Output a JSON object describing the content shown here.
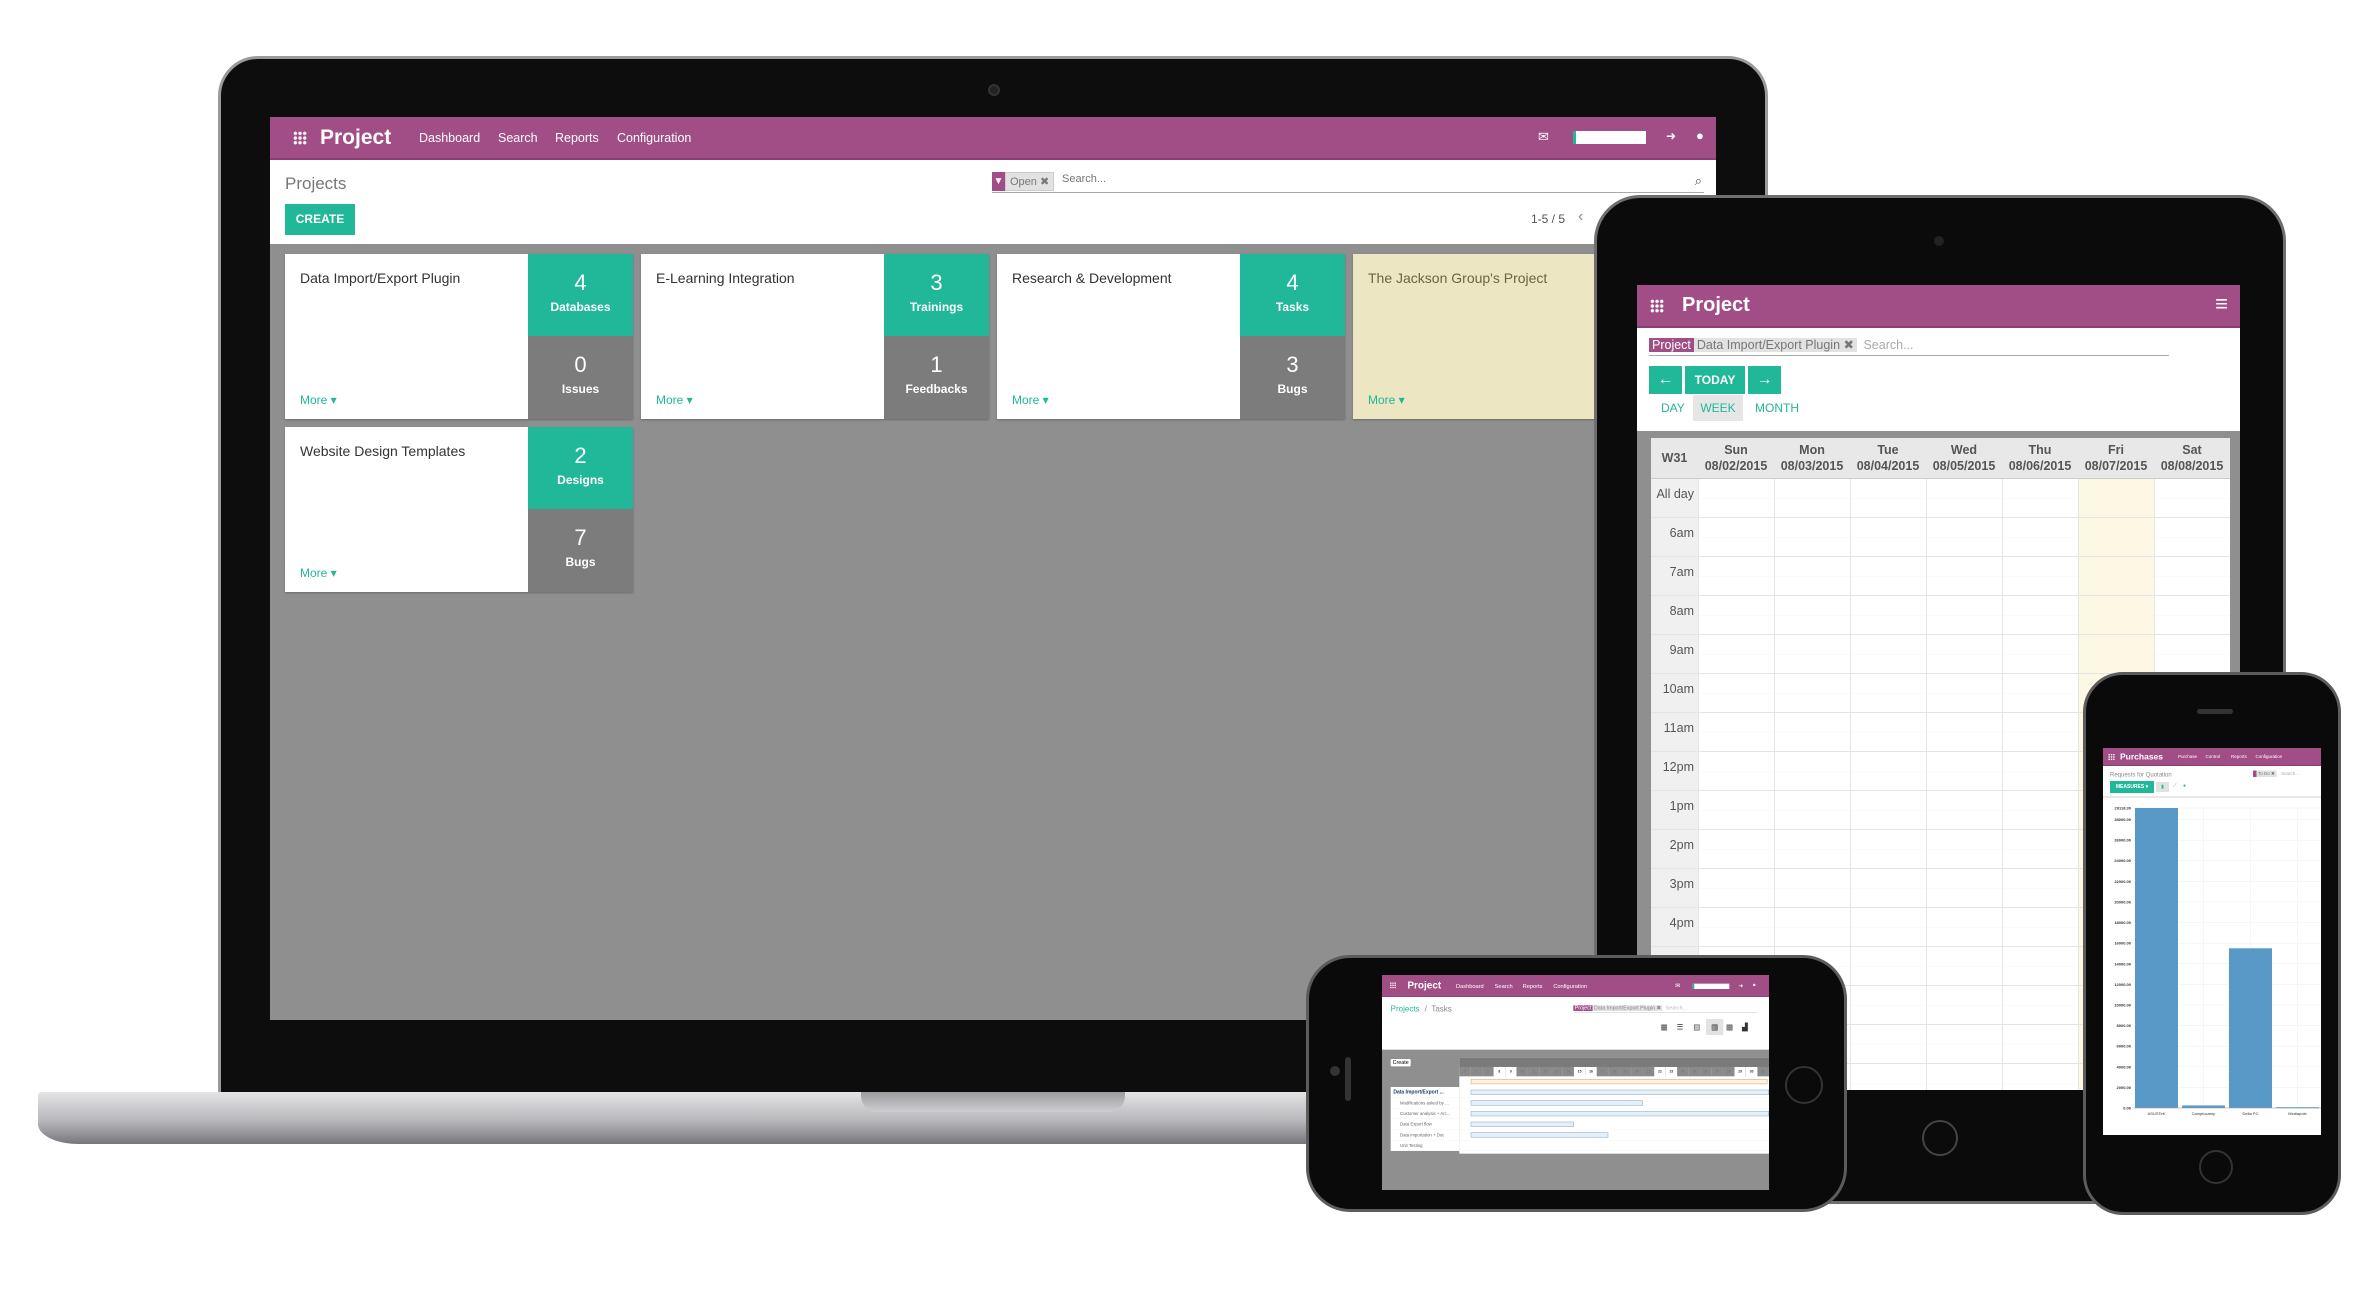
{
  "laptop": {
    "app_title": "Project",
    "menu": [
      "Dashboard",
      "Search",
      "Reports",
      "Configuration"
    ],
    "icons": [
      "apps-grid-icon",
      "mail-icon",
      "signout-icon",
      "chat-icon"
    ],
    "breadcrumb": "Projects",
    "search": {
      "facet_icon": "filter-icon",
      "facet": "Open",
      "placeholder": "Search..."
    },
    "create_label": "CREATE",
    "pager": "1-5 / 5",
    "more_label": "More",
    "projects": [
      {
        "name": "Data Import/Export Plugin",
        "stats": [
          {
            "n": "4",
            "l": "Databases"
          },
          {
            "n": "0",
            "l": "Issues"
          }
        ]
      },
      {
        "name": "E-Learning Integration",
        "stats": [
          {
            "n": "3",
            "l": "Trainings"
          },
          {
            "n": "1",
            "l": "Feedbacks"
          }
        ]
      },
      {
        "name": "Research & Development",
        "stats": [
          {
            "n": "4",
            "l": "Tasks"
          },
          {
            "n": "3",
            "l": "Bugs"
          }
        ]
      },
      {
        "name": "The Jackson Group's Project",
        "stats": []
      },
      {
        "name": "Website Design Templates",
        "stats": [
          {
            "n": "2",
            "l": "Designs"
          },
          {
            "n": "7",
            "l": "Bugs"
          }
        ]
      }
    ],
    "colors": {
      "brand": "#a24e86",
      "accent": "#21b799",
      "highlight_card": "#ece6c3"
    }
  },
  "tablet": {
    "app_title": "Project",
    "facet_label": "Project",
    "facet_value": "Data Import/Export Plugin",
    "placeholder": "Search...",
    "today_label": "TODAY",
    "views": [
      "DAY",
      "WEEK",
      "MONTH"
    ],
    "active_view": "WEEK",
    "week": "W31",
    "days": [
      {
        "d": "Sun",
        "date": "08/02/2015"
      },
      {
        "d": "Mon",
        "date": "08/03/2015"
      },
      {
        "d": "Tue",
        "date": "08/04/2015"
      },
      {
        "d": "Wed",
        "date": "08/05/2015"
      },
      {
        "d": "Thu",
        "date": "08/06/2015"
      },
      {
        "d": "Fri",
        "date": "08/07/2015"
      },
      {
        "d": "Sat",
        "date": "08/08/2015"
      }
    ],
    "all_day": "All day",
    "hours": [
      "6am",
      "7am",
      "8am",
      "9am",
      "10am",
      "11am",
      "12pm",
      "1pm",
      "2pm",
      "3pm",
      "4pm"
    ]
  },
  "phone_landscape": {
    "app_title": "Project",
    "menu": [
      "Dashboard",
      "Search",
      "Reports",
      "Configuration"
    ],
    "breadcrumb_link": "Projects",
    "breadcrumb_current": "Tasks",
    "facet_label": "Project",
    "facet_value": "Data Import/Export Plugin",
    "placeholder": "Search...",
    "create_label": "Create",
    "days": [
      "5",
      "6",
      "7",
      "8",
      "9",
      "10",
      "11",
      "12",
      "13",
      "14",
      "15",
      "16",
      "17",
      "18",
      "19",
      "20",
      "21",
      "22",
      "23",
      "24",
      "25",
      "26",
      "27",
      "28",
      "29",
      "30",
      "31"
    ],
    "tasks": [
      {
        "name": "Data Import/Export ...",
        "group": true,
        "start": 0,
        "end": 26
      },
      {
        "name": "Modifications asked by ...",
        "start": 0,
        "end": 15
      },
      {
        "name": "Customer analysis + Arc...",
        "start": 0,
        "end": 26
      },
      {
        "name": "Data Export flow",
        "start": 0,
        "end": 9
      },
      {
        "name": "Data importation + Doc",
        "start": 0,
        "end": 12
      },
      {
        "name": "Unit Testing",
        "start": 0,
        "end": 24
      }
    ]
  },
  "phone_portrait": {
    "app_title": "Purchases",
    "menu": [
      "Purchase",
      "Control",
      "Reports",
      "Configuration"
    ],
    "breadcrumb": "Requests for Quotation",
    "facet": "To Do",
    "placeholder": "Search...",
    "measures_label": "MEASURES",
    "chart_data": {
      "type": "bar",
      "categories": [
        "ASUSTeK",
        "Camptocamp",
        "Delta PC",
        "Mediapole"
      ],
      "values": [
        29118.3,
        250,
        15500,
        80
      ],
      "ylim": [
        0,
        29118.3
      ],
      "yticks": [
        "0.00",
        "2000.00",
        "4000.00",
        "6000.00",
        "8000.00",
        "10000.00",
        "12000.00",
        "14000.00",
        "16000.00",
        "18000.00",
        "20000.00",
        "22000.00",
        "24000.00",
        "26000.00",
        "28000.00",
        "29118.30"
      ],
      "grid": true,
      "bar_color": "#5899c8"
    }
  }
}
